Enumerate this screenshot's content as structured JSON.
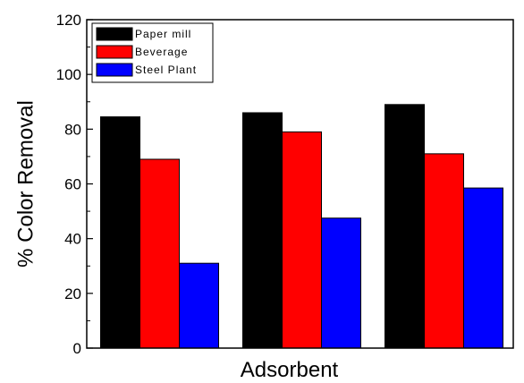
{
  "chart_data": {
    "type": "bar",
    "title": "",
    "xlabel": "Adsorbent",
    "ylabel": "% Color Removal",
    "ylim": [
      0,
      120
    ],
    "yticks": [
      0,
      20,
      40,
      60,
      80,
      100,
      120
    ],
    "categories": [
      "",
      "",
      ""
    ],
    "series": [
      {
        "name": "Paper mill",
        "color": "#000000",
        "values": [
          84.5,
          86,
          89
        ]
      },
      {
        "name": "Beverage",
        "color": "#ff0000",
        "values": [
          69,
          79,
          71
        ]
      },
      {
        "name": "Steel Plant",
        "color": "#0000ff",
        "values": [
          31,
          47.5,
          58.5
        ]
      }
    ],
    "legend": {
      "position": "top-left"
    },
    "grid": false
  }
}
